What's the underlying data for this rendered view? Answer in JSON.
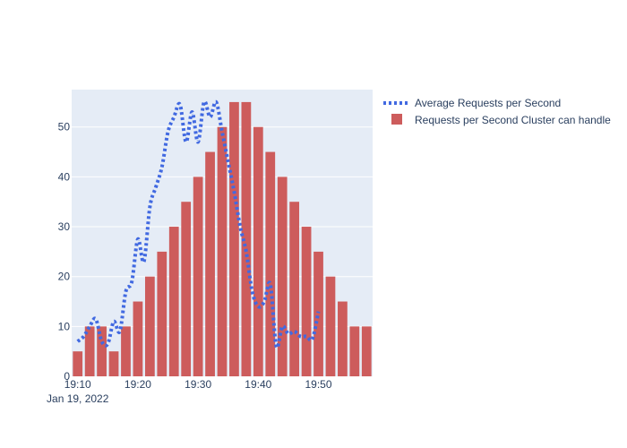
{
  "chart_data": {
    "type": "bar+line",
    "title": "",
    "xlabel": "",
    "ylabel": "",
    "ylim": [
      0,
      57.5
    ],
    "xlim": [
      "2022-01-19 19:09",
      "2022-01-19 19:59"
    ],
    "y_ticks": [
      0,
      10,
      20,
      30,
      40,
      50
    ],
    "x_ticks": [
      {
        "time": "2022-01-19 19:10",
        "label": "19:10"
      },
      {
        "time": "2022-01-19 19:20",
        "label": "19:20"
      },
      {
        "time": "2022-01-19 19:30",
        "label": "19:30"
      },
      {
        "time": "2022-01-19 19:40",
        "label": "19:40"
      },
      {
        "time": "2022-01-19 19:50",
        "label": "19:50"
      }
    ],
    "x_date_label": "Jan 19, 2022",
    "grid": true,
    "legend_position": "top-right",
    "colors": {
      "plot_bg": "#e5ecf6",
      "grid": "#ffffff",
      "bar": "#cd5c5c",
      "line": "#4169e1",
      "text": "#2a3f5f"
    },
    "series": [
      {
        "name": "Average Requests per Second",
        "kind": "line",
        "style": "dotted",
        "points": [
          [
            "2022-01-19 19:10",
            7
          ],
          [
            "2022-01-19 19:11",
            8
          ],
          [
            "2022-01-19 19:12",
            10
          ],
          [
            "2022-01-19 19:13",
            11.5
          ],
          [
            "2022-01-19 19:14",
            7
          ],
          [
            "2022-01-19 19:15",
            6.5
          ],
          [
            "2022-01-19 19:16",
            11
          ],
          [
            "2022-01-19 19:17",
            9
          ],
          [
            "2022-01-19 19:18",
            17
          ],
          [
            "2022-01-19 19:19",
            19
          ],
          [
            "2022-01-19 19:20",
            27.5
          ],
          [
            "2022-01-19 19:21",
            23
          ],
          [
            "2022-01-19 19:22",
            34
          ],
          [
            "2022-01-19 19:23",
            38
          ],
          [
            "2022-01-19 19:24",
            42
          ],
          [
            "2022-01-19 19:25",
            49
          ],
          [
            "2022-01-19 19:26",
            52
          ],
          [
            "2022-01-19 19:27",
            54.5
          ],
          [
            "2022-01-19 19:28",
            47
          ],
          [
            "2022-01-19 19:29",
            53
          ],
          [
            "2022-01-19 19:30",
            47
          ],
          [
            "2022-01-19 19:31",
            55
          ],
          [
            "2022-01-19 19:32",
            52
          ],
          [
            "2022-01-19 19:33",
            55
          ],
          [
            "2022-01-19 19:34",
            49
          ],
          [
            "2022-01-19 19:35",
            43
          ],
          [
            "2022-01-19 19:36",
            37
          ],
          [
            "2022-01-19 19:37",
            30
          ],
          [
            "2022-01-19 19:38",
            25
          ],
          [
            "2022-01-19 19:39",
            17
          ],
          [
            "2022-01-19 19:40",
            14
          ],
          [
            "2022-01-19 19:41",
            15
          ],
          [
            "2022-01-19 19:42",
            18.5
          ],
          [
            "2022-01-19 19:43",
            6
          ],
          [
            "2022-01-19 19:44",
            10
          ],
          [
            "2022-01-19 19:45",
            8.5
          ],
          [
            "2022-01-19 19:46",
            9
          ],
          [
            "2022-01-19 19:47",
            8
          ],
          [
            "2022-01-19 19:48",
            8
          ],
          [
            "2022-01-19 19:49",
            7.5
          ],
          [
            "2022-01-19 19:50",
            13
          ]
        ]
      },
      {
        "name": "Requests per Second Cluster can handle",
        "kind": "bar",
        "points": [
          [
            "2022-01-19 19:10",
            5
          ],
          [
            "2022-01-19 19:12",
            10
          ],
          [
            "2022-01-19 19:14",
            10
          ],
          [
            "2022-01-19 19:16",
            5
          ],
          [
            "2022-01-19 19:18",
            10
          ],
          [
            "2022-01-19 19:20",
            15
          ],
          [
            "2022-01-19 19:22",
            20
          ],
          [
            "2022-01-19 19:24",
            25
          ],
          [
            "2022-01-19 19:26",
            30
          ],
          [
            "2022-01-19 19:28",
            35
          ],
          [
            "2022-01-19 19:30",
            40
          ],
          [
            "2022-01-19 19:32",
            45
          ],
          [
            "2022-01-19 19:34",
            50
          ],
          [
            "2022-01-19 19:36",
            55
          ],
          [
            "2022-01-19 19:38",
            55
          ],
          [
            "2022-01-19 19:40",
            50
          ],
          [
            "2022-01-19 19:42",
            45
          ],
          [
            "2022-01-19 19:44",
            40
          ],
          [
            "2022-01-19 19:46",
            35
          ],
          [
            "2022-01-19 19:48",
            30
          ],
          [
            "2022-01-19 19:50",
            25
          ],
          [
            "2022-01-19 19:52",
            20
          ],
          [
            "2022-01-19 19:54",
            15
          ],
          [
            "2022-01-19 19:56",
            10
          ],
          [
            "2022-01-19 19:58",
            10
          ]
        ]
      }
    ]
  }
}
